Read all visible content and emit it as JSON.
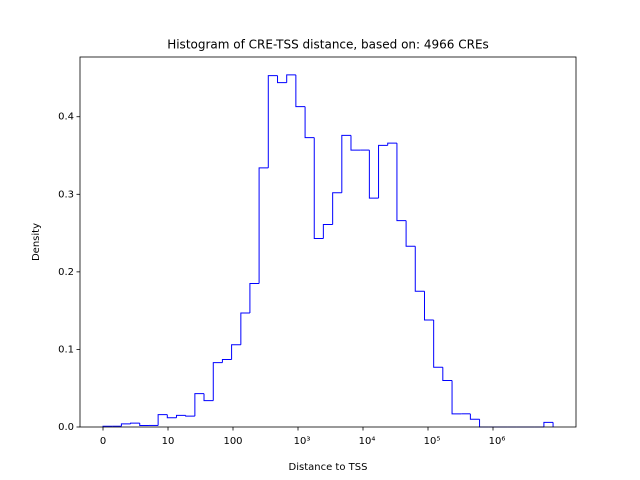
{
  "chart_data": {
    "type": "histogram",
    "title": "Histogram of CRE-TSS distance, based on: 4966 CREs",
    "x_label": "Distance to TSS",
    "y_label": "Density",
    "xscale": "symlog",
    "linthresh": 10,
    "histtype": "step",
    "color": "#0000ff",
    "bins": [
      0,
      1.41,
      2.83,
      4.24,
      5.65,
      7.07,
      8.48,
      9.89,
      13.5,
      18.7,
      25.9,
      35.8,
      49.7,
      68.7,
      95.1,
      132,
      182,
      252,
      349,
      484,
      670,
      927,
      1285,
      1778,
      2455,
      3412,
      4721,
      6531,
      9036,
      12530,
      17340,
      23990,
      33270,
      46030,
      63680,
      88310,
      122200,
      169000,
      234400,
      324300,
      448700,
      620900,
      861000,
      1191000,
      1648000,
      2286000,
      3162000,
      4375000,
      6067000,
      8395000
    ],
    "values": [
      0.001,
      0.001,
      0.004,
      0.005,
      0.002,
      0.002,
      0.016,
      0.012,
      0.015,
      0.014,
      0.043,
      0.034,
      0.083,
      0.087,
      0.106,
      0.147,
      0.185,
      0.334,
      0.453,
      0.444,
      0.454,
      0.413,
      0.373,
      0.243,
      0.261,
      0.302,
      0.376,
      0.357,
      0.357,
      0.295,
      0.363,
      0.366,
      0.266,
      0.233,
      0.175,
      0.138,
      0.077,
      0.06,
      0.017,
      0.017,
      0.01,
      0,
      0,
      0,
      0,
      0,
      0,
      0,
      0.006
    ],
    "xlim": [
      -3.54,
      18920000
    ],
    "ylim": [
      0,
      0.477
    ],
    "xticks": [
      0,
      10,
      100,
      {
        "value": 1000,
        "label": "10³"
      },
      {
        "value": 10000,
        "label": "10⁴"
      },
      {
        "value": 100000,
        "label": "10⁵"
      },
      {
        "value": 1000000,
        "label": "10⁶"
      }
    ],
    "yticks": [
      {
        "value": 0,
        "label": "0.0"
      },
      0.1,
      0.2,
      0.3,
      0.4
    ]
  }
}
